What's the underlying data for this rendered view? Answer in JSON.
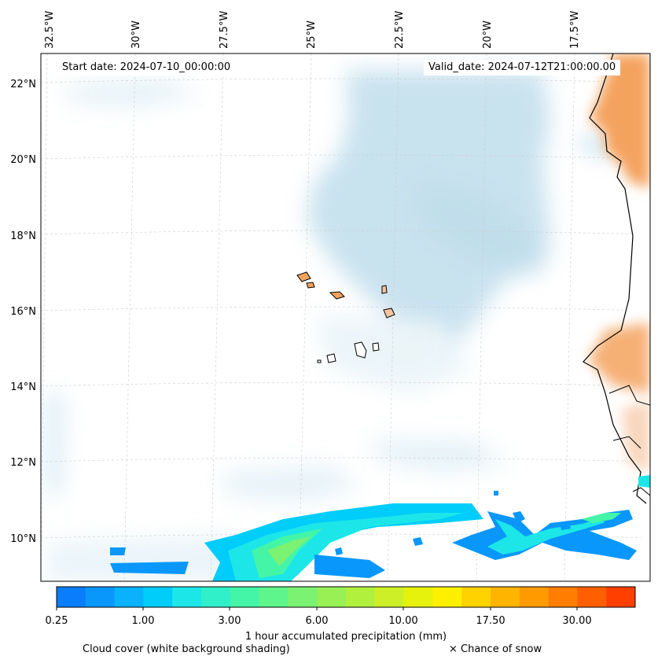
{
  "header": {
    "start_date": "Start date: 2024-07-10_00:00:00",
    "valid_date": "Valid_date: 2024-07-12T21:00:00.00"
  },
  "axes": {
    "lon_labels": [
      "32.5°W",
      "30°W",
      "27.5°W",
      "25°W",
      "22.5°W",
      "20°W",
      "17.5°W"
    ],
    "lat_labels": [
      "22°N",
      "20°N",
      "18°N",
      "16°N",
      "14°N",
      "12°N",
      "10°N"
    ]
  },
  "colorbar": {
    "label": "1 hour accumulated precipitation (mm)",
    "ticks": [
      "0.25",
      "1.00",
      "3.00",
      "6.00",
      "10.00",
      "17.50",
      "30.00"
    ],
    "colors": [
      "#0a7dfc",
      "#0a97fc",
      "#09b2fb",
      "#00cdfa",
      "#1ce6e8",
      "#2ff0c8",
      "#44f5a8",
      "#5ef58c",
      "#7cf272",
      "#98f055",
      "#b2f03e",
      "#cdef28",
      "#e6f20c",
      "#fff000",
      "#ffd200",
      "#ffb500",
      "#ff9a00",
      "#ff7d00",
      "#ff5f00",
      "#ff3f00"
    ]
  },
  "legend": {
    "cloud_cover": "Cloud cover (white background shading)",
    "snow": "× Chance of snow"
  },
  "colors": {
    "land_dry": "#f4a35e",
    "cloud": "#a9d3e6",
    "coast": "#000000"
  }
}
